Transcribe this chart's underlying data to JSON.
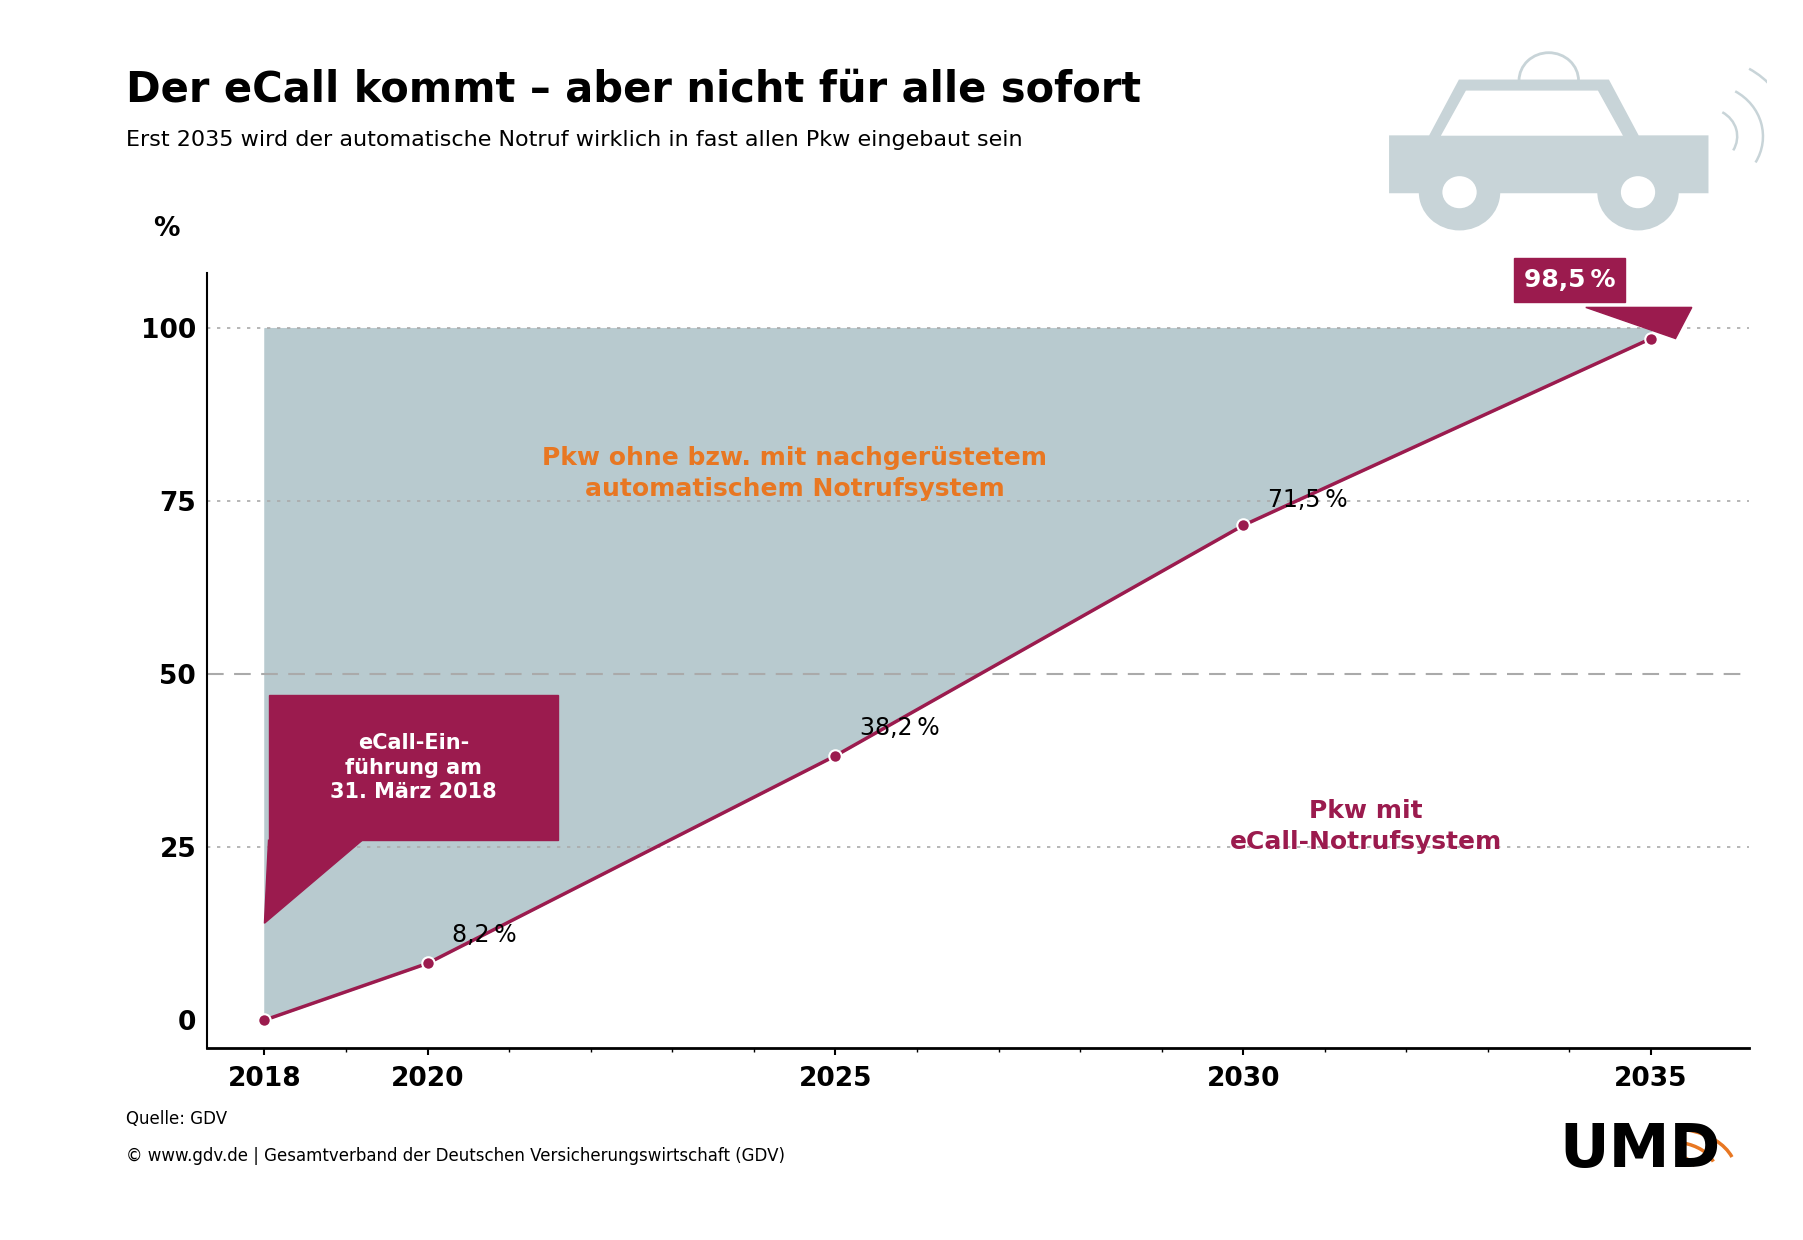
{
  "title": "Der eCall kommt – aber nicht für alle sofort",
  "subtitle": "Erst 2035 wird der automatische Notruf wirklich in fast allen Pkw eingebaut sein",
  "source_line1": "Quelle: GDV",
  "source_line2": "© www.gdv.de | Gesamtverband der Deutschen Versicherungswirtschaft (GDV)",
  "x_data": [
    2018,
    2020,
    2025,
    2030,
    2035
  ],
  "y_data": [
    0.0,
    8.2,
    38.2,
    71.5,
    98.5
  ],
  "line_color": "#9B1B4E",
  "fill_color": "#B8CACF",
  "fill_alpha": 1.0,
  "marker_color": "#9B1B4E",
  "bg_color": "#FFFFFF",
  "yticks": [
    0,
    25,
    50,
    75,
    100
  ],
  "xticks": [
    2018,
    2020,
    2025,
    2030,
    2035
  ],
  "ylabel": "%",
  "y_lim": [
    -4,
    108
  ],
  "x_lim": [
    2017.3,
    2036.2
  ],
  "label_orange": "Pkw ohne bzw. mit nachgerüstetem\nautomatischem Notrufsystem",
  "label_crimson": "Pkw mit\neCall-Notrufsystem",
  "callout_bg": "#9B1B4E",
  "label_98": "98,5 %",
  "label_71": "71,5 %",
  "label_38": "38,2 %",
  "label_8": "8,2 %",
  "title_fontsize": 30,
  "subtitle_fontsize": 16,
  "tick_fontsize": 19,
  "annotation_fontsize": 17,
  "callout_fontsize": 15,
  "orange_color": "#E87722",
  "grid_color": "#AAAAAA",
  "dashed_50_color": "#AAAAAA"
}
